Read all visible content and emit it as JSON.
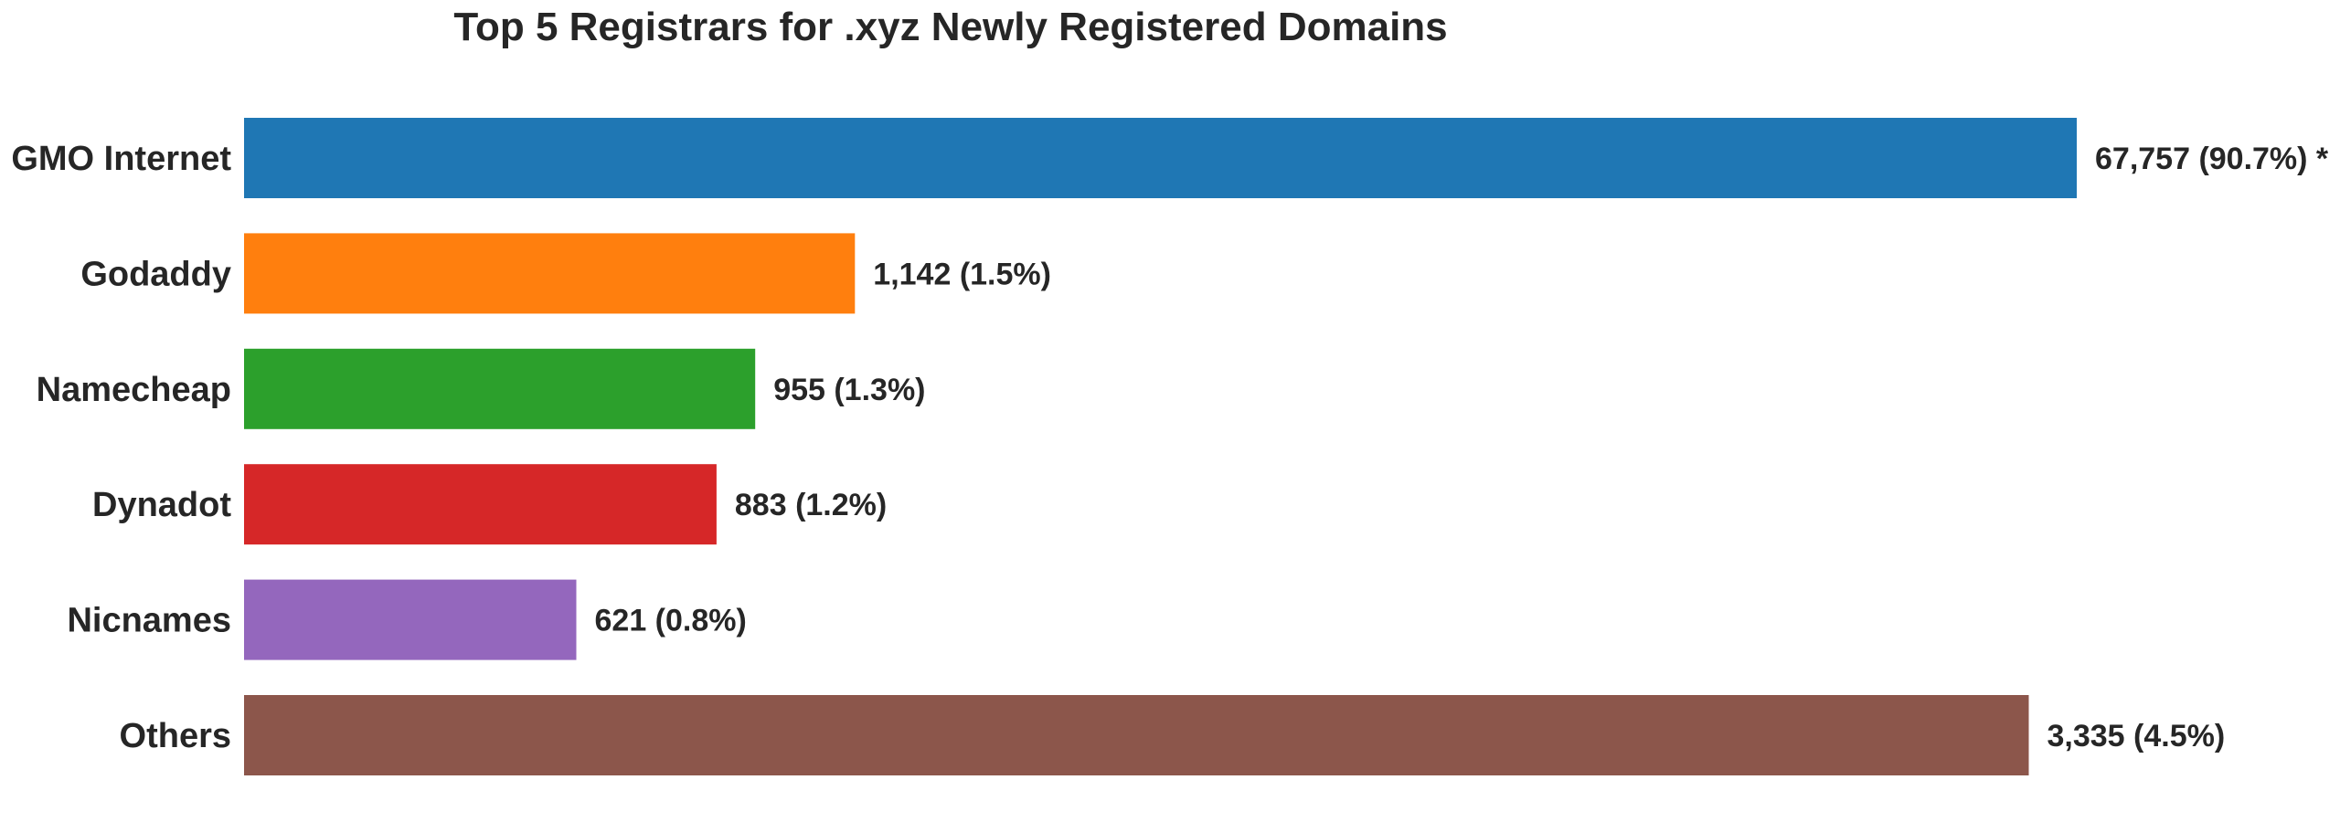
{
  "chart_data": {
    "type": "bar",
    "orientation": "horizontal",
    "title": "Top 5 Registrars for .xyz Newly Registered Domains",
    "xlabel": "",
    "ylabel": "",
    "grid": false,
    "categories": [
      "GMO Internet",
      "Godaddy",
      "Namecheap",
      "Dynadot",
      "Nicnames",
      "Others"
    ],
    "values": [
      67757,
      1142,
      955,
      883,
      621,
      3335
    ],
    "bar_lengths_relative": [
      1.0,
      0.3333,
      0.2789,
      0.2578,
      0.1813,
      0.9738
    ],
    "data_labels": [
      "67,757 (90.7%) *",
      "1,142 (1.5%)",
      "955 (1.3%)",
      "883 (1.2%)",
      "621 (0.8%)",
      "3,335 (4.5%)"
    ],
    "colors": [
      "#1f77b4",
      "#ff7f0e",
      "#2ca02c",
      "#d62728",
      "#9467bd",
      "#8c564b"
    ]
  }
}
